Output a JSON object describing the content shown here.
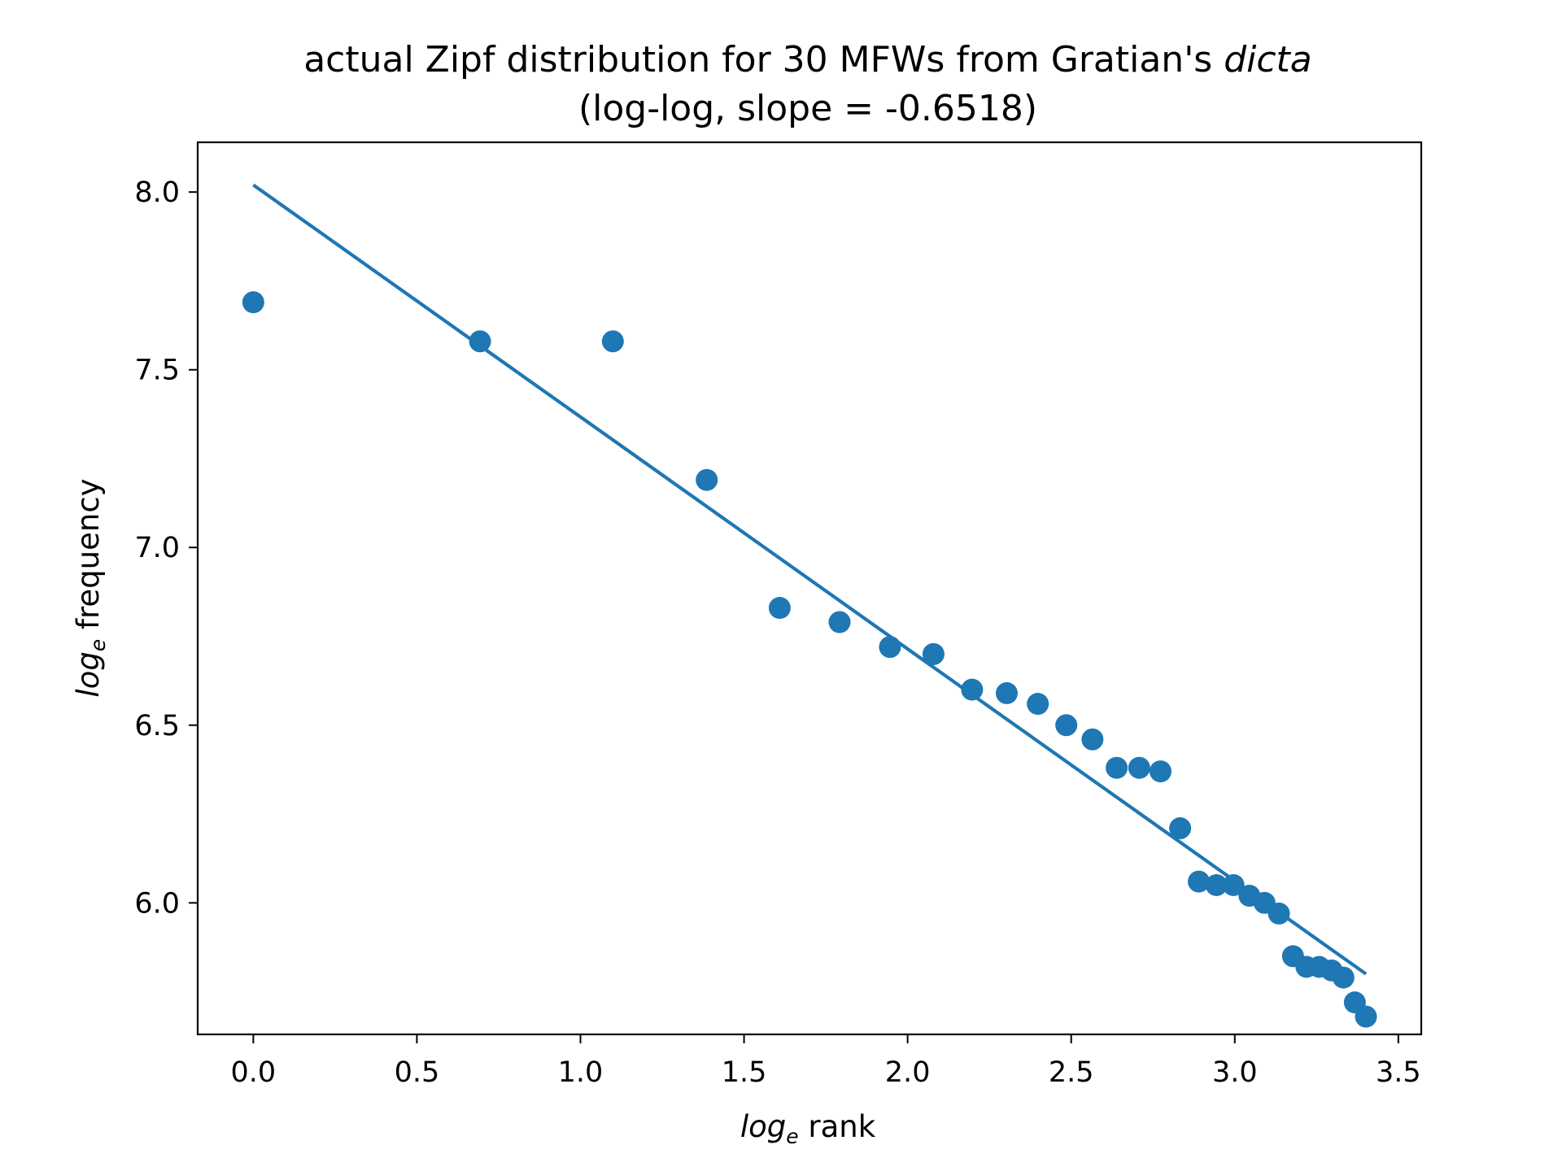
{
  "chart_data": {
    "type": "scatter",
    "title": {
      "prefix": "actual Zipf distribution for 30 MFWs from Gratian's ",
      "emphasis": "dicta",
      "line2": "(log-log, slope = -0.6518)"
    },
    "xlabel": {
      "log": "log",
      "base": "e",
      "rest": " rank"
    },
    "ylabel": {
      "log": "log",
      "base": "e",
      "rest": " frequency"
    },
    "xlim": [
      -0.17,
      3.57
    ],
    "ylim": [
      5.63,
      8.14
    ],
    "xticks": [
      0.0,
      0.5,
      1.0,
      1.5,
      2.0,
      2.5,
      3.0,
      3.5
    ],
    "xtick_labels": [
      "0.0",
      "0.5",
      "1.0",
      "1.5",
      "2.0",
      "2.5",
      "3.0",
      "3.5"
    ],
    "yticks": [
      6.0,
      6.5,
      7.0,
      7.5,
      8.0
    ],
    "ytick_labels": [
      "6.0",
      "6.5",
      "7.0",
      "7.5",
      "8.0"
    ],
    "grid": false,
    "color": "#1f77b4",
    "points": {
      "x": [
        0.0,
        0.693,
        1.099,
        1.386,
        1.609,
        1.792,
        1.946,
        2.079,
        2.197,
        2.303,
        2.398,
        2.485,
        2.565,
        2.639,
        2.708,
        2.773,
        2.833,
        2.89,
        2.944,
        2.996,
        3.045,
        3.091,
        3.135,
        3.178,
        3.219,
        3.258,
        3.296,
        3.332,
        3.367,
        3.401
      ],
      "y": [
        7.69,
        7.58,
        7.58,
        7.19,
        6.83,
        6.79,
        6.72,
        6.7,
        6.6,
        6.59,
        6.56,
        6.5,
        6.46,
        6.38,
        6.38,
        6.37,
        6.21,
        6.06,
        6.05,
        6.05,
        6.02,
        6.0,
        5.97,
        5.85,
        5.82,
        5.82,
        5.81,
        5.79,
        5.72,
        5.68
      ]
    },
    "fit_line": {
      "x": [
        0.0,
        3.401
      ],
      "y": [
        8.02,
        5.8
      ]
    }
  }
}
